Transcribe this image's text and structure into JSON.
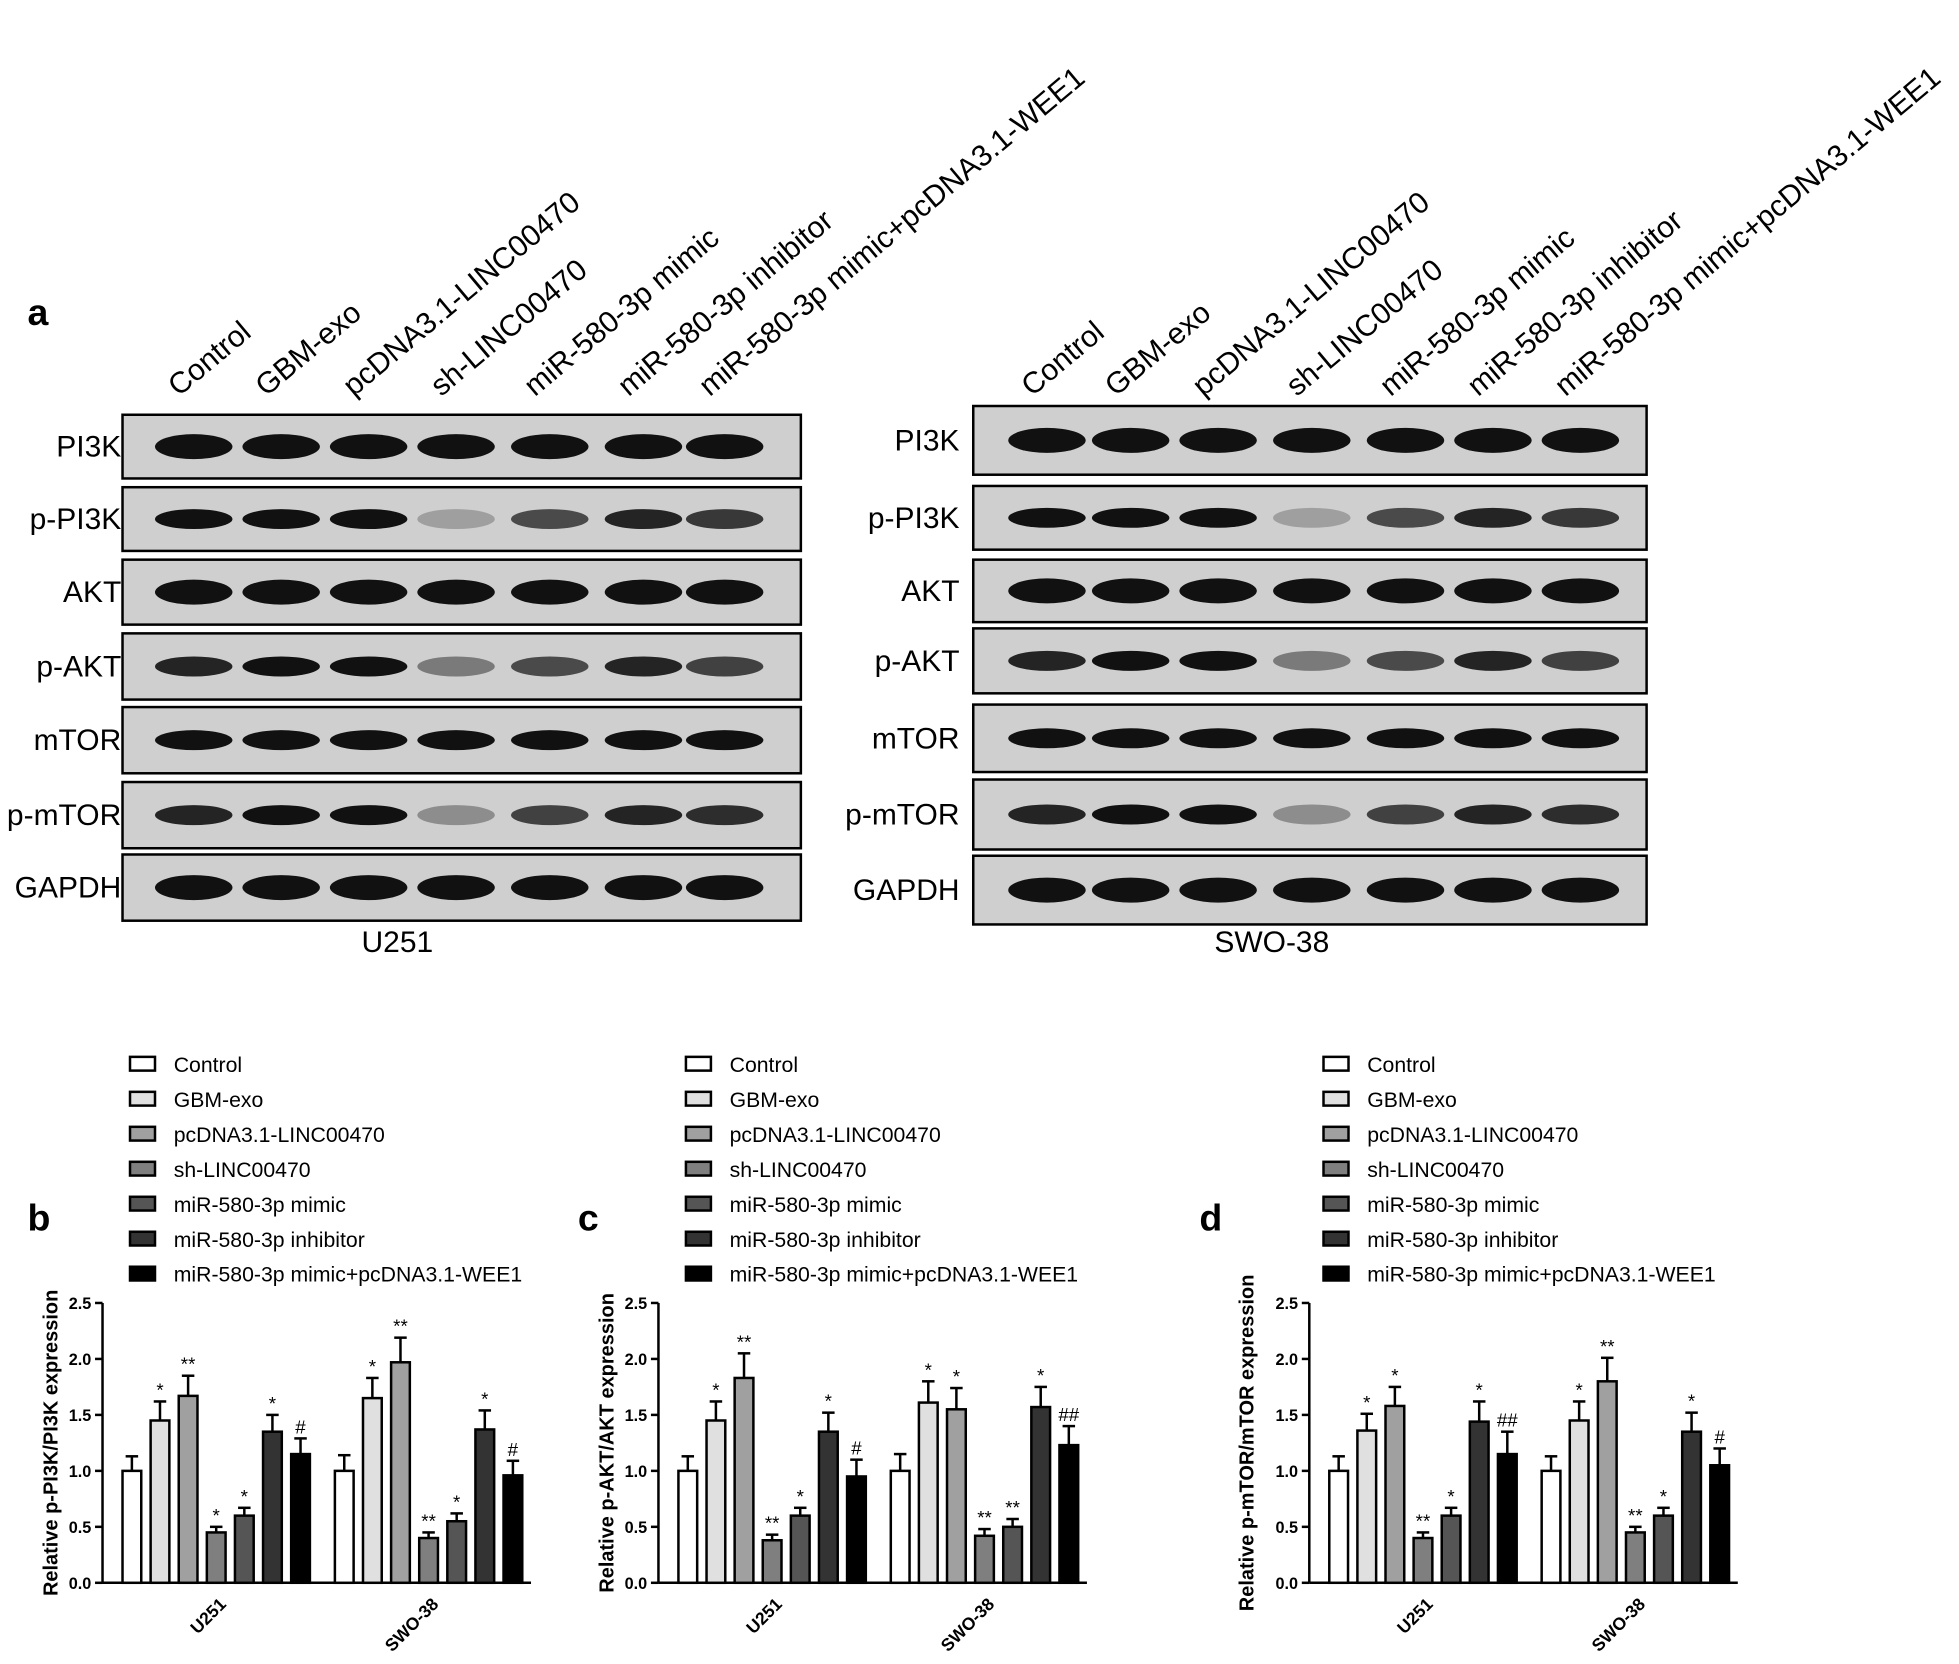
{
  "western_blot": {
    "panel_label": "a",
    "lanes": [
      "Control",
      "GBM-exo",
      "pcDNA3.1-LINC00470",
      "sh-LINC00470",
      "miR-580-3p mimic",
      "miR-580-3p inhibitor",
      "miR-580-3p mimic+pcDNA3.1-WEE1"
    ],
    "proteins": [
      "PI3K",
      "p-PI3K",
      "AKT",
      "p-AKT",
      "mTOR",
      "p-mTOR",
      "GAPDH"
    ],
    "cell_lines": [
      "U251",
      "SWO-38"
    ]
  },
  "chart_data": [
    {
      "type": "bar",
      "panel_label": "b",
      "y_label": "Relative p-PI3K/PI3K expression",
      "categories": [
        "U251",
        "SWO-38"
      ],
      "ylim": [
        0,
        2.5
      ],
      "yticks": [
        {
          "value": 0,
          "label": "0.0"
        },
        0.5,
        {
          "value": 1,
          "label": "1.0"
        },
        1.5,
        {
          "value": 2,
          "label": "2.0"
        },
        2.5
      ],
      "series": [
        {
          "name": "Control",
          "color": "#ffffff",
          "values": [
            1.0,
            1.0
          ],
          "errors": [
            0.13,
            0.14
          ],
          "annotations": [
            null,
            null
          ]
        },
        {
          "name": "GBM-exo",
          "color": "#e0e0e0",
          "values": [
            1.45,
            1.65
          ],
          "errors": [
            0.17,
            0.18
          ],
          "annotations": [
            "*",
            "*"
          ]
        },
        {
          "name": "pcDNA3.1-LINC00470",
          "color": "#a0a0a0",
          "values": [
            1.67,
            1.97
          ],
          "errors": [
            0.18,
            0.22
          ],
          "annotations": [
            "**",
            "**"
          ]
        },
        {
          "name": "sh-LINC00470",
          "color": "#7f7f7f",
          "values": [
            0.45,
            0.4
          ],
          "errors": [
            0.05,
            0.05
          ],
          "annotations": [
            "*",
            "**"
          ]
        },
        {
          "name": "miR-580-3p mimic",
          "color": "#555555",
          "values": [
            0.6,
            0.55
          ],
          "errors": [
            0.07,
            0.07
          ],
          "annotations": [
            "*",
            "*"
          ]
        },
        {
          "name": "miR-580-3p inhibitor",
          "color": "#333333",
          "values": [
            1.35,
            1.37
          ],
          "errors": [
            0.15,
            0.17
          ],
          "annotations": [
            "*",
            "*"
          ]
        },
        {
          "name": "miR-580-3p mimic+pcDNA3.1-WEE1",
          "color": "#000000",
          "values": [
            1.15,
            0.96
          ],
          "errors": [
            0.14,
            0.13
          ],
          "annotations": [
            "#",
            "#"
          ]
        }
      ]
    },
    {
      "type": "bar",
      "panel_label": "c",
      "y_label": "Relative p-AKT/AKT expression",
      "categories": [
        "U251",
        "SWO-38"
      ],
      "ylim": [
        0,
        2.5
      ],
      "yticks": [
        {
          "value": 0,
          "label": "0.0"
        },
        0.5,
        {
          "value": 1,
          "label": "1.0"
        },
        1.5,
        {
          "value": 2,
          "label": "2.0"
        },
        2.5
      ],
      "series": [
        {
          "name": "Control",
          "color": "#ffffff",
          "values": [
            1.0,
            1.0
          ],
          "errors": [
            0.13,
            0.15
          ],
          "annotations": [
            null,
            null
          ]
        },
        {
          "name": "GBM-exo",
          "color": "#e0e0e0",
          "values": [
            1.45,
            1.61
          ],
          "errors": [
            0.17,
            0.19
          ],
          "annotations": [
            "*",
            "*"
          ]
        },
        {
          "name": "pcDNA3.1-LINC00470",
          "color": "#a0a0a0",
          "values": [
            1.83,
            1.55
          ],
          "errors": [
            0.22,
            0.19
          ],
          "annotations": [
            "**",
            "*"
          ]
        },
        {
          "name": "sh-LINC00470",
          "color": "#7f7f7f",
          "values": [
            0.38,
            0.42
          ],
          "errors": [
            0.05,
            0.06
          ],
          "annotations": [
            "**",
            "**"
          ]
        },
        {
          "name": "miR-580-3p mimic",
          "color": "#555555",
          "values": [
            0.6,
            0.5
          ],
          "errors": [
            0.07,
            0.07
          ],
          "annotations": [
            "*",
            "**"
          ]
        },
        {
          "name": "miR-580-3p inhibitor",
          "color": "#333333",
          "values": [
            1.35,
            1.57
          ],
          "errors": [
            0.17,
            0.18
          ],
          "annotations": [
            "*",
            "*"
          ]
        },
        {
          "name": "miR-580-3p mimic+pcDNA3.1-WEE1",
          "color": "#000000",
          "values": [
            0.95,
            1.23
          ],
          "errors": [
            0.15,
            0.17
          ],
          "annotations": [
            "#",
            "##"
          ]
        }
      ]
    },
    {
      "type": "bar",
      "panel_label": "d",
      "y_label": "Relative p-mTOR/mTOR expression",
      "categories": [
        "U251",
        "SWO-38"
      ],
      "ylim": [
        0,
        2.5
      ],
      "yticks": [
        {
          "value": 0,
          "label": "0.0"
        },
        0.5,
        {
          "value": 1,
          "label": "1.0"
        },
        1.5,
        {
          "value": 2,
          "label": "2.0"
        },
        2.5
      ],
      "series": [
        {
          "name": "Control",
          "color": "#ffffff",
          "values": [
            1.0,
            1.0
          ],
          "errors": [
            0.13,
            0.13
          ],
          "annotations": [
            null,
            null
          ]
        },
        {
          "name": "GBM-exo",
          "color": "#e0e0e0",
          "values": [
            1.36,
            1.45
          ],
          "errors": [
            0.15,
            0.17
          ],
          "annotations": [
            "*",
            "*"
          ]
        },
        {
          "name": "pcDNA3.1-LINC00470",
          "color": "#a0a0a0",
          "values": [
            1.58,
            1.8
          ],
          "errors": [
            0.17,
            0.21
          ],
          "annotations": [
            "*",
            "**"
          ]
        },
        {
          "name": "sh-LINC00470",
          "color": "#7f7f7f",
          "values": [
            0.4,
            0.45
          ],
          "errors": [
            0.05,
            0.05
          ],
          "annotations": [
            "**",
            "**"
          ]
        },
        {
          "name": "miR-580-3p mimic",
          "color": "#555555",
          "values": [
            0.6,
            0.6
          ],
          "errors": [
            0.07,
            0.07
          ],
          "annotations": [
            "*",
            "*"
          ]
        },
        {
          "name": "miR-580-3p inhibitor",
          "color": "#333333",
          "values": [
            1.44,
            1.35
          ],
          "errors": [
            0.18,
            0.17
          ],
          "annotations": [
            "*",
            "*"
          ]
        },
        {
          "name": "miR-580-3p mimic+pcDNA3.1-WEE1",
          "color": "#000000",
          "values": [
            1.15,
            1.05
          ],
          "errors": [
            0.2,
            0.15
          ],
          "annotations": [
            "##",
            "#"
          ]
        }
      ]
    }
  ]
}
